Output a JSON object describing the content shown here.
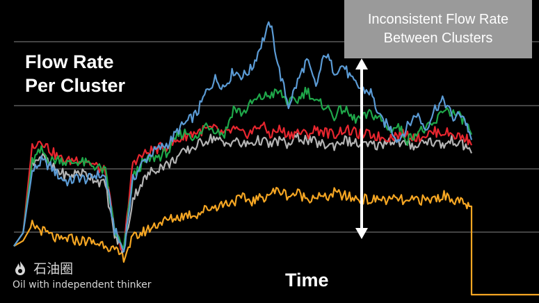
{
  "title_line1": "Flow Rate",
  "title_line2": "Per Cluster",
  "xlabel": "Time",
  "callout_line1": "Inconsistent Flow Rate",
  "callout_line2": "Between Clusters",
  "watermark": {
    "name": "石油圈",
    "slogan": "Oil with independent thinker",
    "icon": "flame-logo-icon"
  },
  "colors": {
    "blue": "#5b9bd5",
    "green": "#1fa84a",
    "red": "#e8262f",
    "gray": "#b4b4b4",
    "orange": "#f5a623",
    "arrow": "#ffffff",
    "grid": "#888888"
  },
  "chart_data": {
    "type": "line",
    "title": "Flow Rate Per Cluster",
    "xlabel": "Time",
    "ylabel": "",
    "xlim": [
      0,
      100
    ],
    "ylim": [
      0,
      100
    ],
    "grid": true,
    "legend": "none",
    "annotation": "Inconsistent Flow Rate Between Clusters",
    "series": [
      {
        "color": "#5b9bd5",
        "points": [
          [
            0,
            12
          ],
          [
            2,
            17
          ],
          [
            4,
            40
          ],
          [
            6,
            44
          ],
          [
            8,
            42
          ],
          [
            10,
            38
          ],
          [
            12,
            36
          ],
          [
            14,
            38
          ],
          [
            16,
            37
          ],
          [
            18,
            39
          ],
          [
            20,
            38
          ],
          [
            22,
            18
          ],
          [
            24,
            10
          ],
          [
            26,
            37
          ],
          [
            28,
            43
          ],
          [
            30,
            47
          ],
          [
            32,
            49
          ],
          [
            34,
            51
          ],
          [
            36,
            56
          ],
          [
            38,
            59
          ],
          [
            40,
            62
          ],
          [
            42,
            70
          ],
          [
            44,
            75
          ],
          [
            46,
            72
          ],
          [
            48,
            78
          ],
          [
            50,
            76
          ],
          [
            52,
            79
          ],
          [
            54,
            88
          ],
          [
            56,
            96
          ],
          [
            58,
            78
          ],
          [
            60,
            65
          ],
          [
            62,
            74
          ],
          [
            64,
            82
          ],
          [
            66,
            72
          ],
          [
            68,
            85
          ],
          [
            70,
            78
          ],
          [
            72,
            80
          ],
          [
            74,
            74
          ],
          [
            76,
            71
          ],
          [
            78,
            70
          ],
          [
            80,
            60
          ],
          [
            82,
            57
          ],
          [
            84,
            52
          ],
          [
            86,
            57
          ],
          [
            88,
            62
          ],
          [
            90,
            56
          ],
          [
            92,
            64
          ],
          [
            94,
            67
          ],
          [
            96,
            60
          ],
          [
            98,
            62
          ],
          [
            99.5,
            55
          ],
          [
            100,
            52
          ]
        ]
      },
      {
        "color": "#1fa84a",
        "points": [
          [
            0,
            12
          ],
          [
            2,
            17
          ],
          [
            4,
            44
          ],
          [
            6,
            48
          ],
          [
            8,
            44
          ],
          [
            10,
            45
          ],
          [
            12,
            43
          ],
          [
            14,
            44
          ],
          [
            16,
            43
          ],
          [
            18,
            42
          ],
          [
            20,
            40
          ],
          [
            22,
            18
          ],
          [
            24,
            10
          ],
          [
            26,
            38
          ],
          [
            28,
            43
          ],
          [
            30,
            45
          ],
          [
            32,
            46
          ],
          [
            34,
            48
          ],
          [
            36,
            54
          ],
          [
            38,
            55
          ],
          [
            40,
            52
          ],
          [
            42,
            58
          ],
          [
            44,
            56
          ],
          [
            46,
            54
          ],
          [
            48,
            64
          ],
          [
            50,
            62
          ],
          [
            52,
            66
          ],
          [
            54,
            68
          ],
          [
            56,
            69
          ],
          [
            58,
            70
          ],
          [
            60,
            66
          ],
          [
            62,
            67
          ],
          [
            64,
            71
          ],
          [
            66,
            66
          ],
          [
            68,
            65
          ],
          [
            70,
            61
          ],
          [
            72,
            64
          ],
          [
            74,
            60
          ],
          [
            76,
            60
          ],
          [
            78,
            62
          ],
          [
            80,
            60
          ],
          [
            82,
            56
          ],
          [
            84,
            57
          ],
          [
            86,
            52
          ],
          [
            88,
            55
          ],
          [
            90,
            56
          ],
          [
            92,
            58
          ],
          [
            94,
            64
          ],
          [
            96,
            62
          ],
          [
            98,
            60
          ],
          [
            99.5,
            56
          ],
          [
            100,
            54
          ]
        ]
      },
      {
        "color": "#e8262f",
        "points": [
          [
            0,
            12
          ],
          [
            2,
            17
          ],
          [
            4,
            50
          ],
          [
            6,
            52
          ],
          [
            8,
            48
          ],
          [
            10,
            45
          ],
          [
            12,
            44
          ],
          [
            14,
            45
          ],
          [
            16,
            44
          ],
          [
            18,
            42
          ],
          [
            20,
            40
          ],
          [
            22,
            18
          ],
          [
            24,
            10
          ],
          [
            26,
            44
          ],
          [
            28,
            46
          ],
          [
            30,
            48
          ],
          [
            32,
            49
          ],
          [
            34,
            50
          ],
          [
            36,
            52
          ],
          [
            38,
            54
          ],
          [
            40,
            55
          ],
          [
            42,
            56
          ],
          [
            44,
            56
          ],
          [
            46,
            54
          ],
          [
            48,
            56
          ],
          [
            50,
            54
          ],
          [
            52,
            55
          ],
          [
            54,
            58
          ],
          [
            56,
            54
          ],
          [
            58,
            56
          ],
          [
            60,
            54
          ],
          [
            62,
            55
          ],
          [
            64,
            54
          ],
          [
            66,
            56
          ],
          [
            68,
            55
          ],
          [
            70,
            54
          ],
          [
            72,
            56
          ],
          [
            74,
            55
          ],
          [
            76,
            54
          ],
          [
            78,
            54
          ],
          [
            80,
            53
          ],
          [
            82,
            53
          ],
          [
            84,
            54
          ],
          [
            86,
            54
          ],
          [
            88,
            53
          ],
          [
            90,
            54
          ],
          [
            92,
            55
          ],
          [
            94,
            55
          ],
          [
            96,
            54
          ],
          [
            98,
            53
          ],
          [
            99.5,
            52
          ],
          [
            100,
            50
          ]
        ]
      },
      {
        "color": "#b4b4b4",
        "points": [
          [
            0,
            12
          ],
          [
            2,
            17
          ],
          [
            4,
            44
          ],
          [
            6,
            46
          ],
          [
            8,
            42
          ],
          [
            10,
            40
          ],
          [
            12,
            38
          ],
          [
            14,
            40
          ],
          [
            16,
            39
          ],
          [
            18,
            37
          ],
          [
            20,
            35
          ],
          [
            22,
            16
          ],
          [
            24,
            10
          ],
          [
            26,
            30
          ],
          [
            28,
            36
          ],
          [
            30,
            40
          ],
          [
            32,
            42
          ],
          [
            34,
            43
          ],
          [
            36,
            46
          ],
          [
            38,
            48
          ],
          [
            40,
            50
          ],
          [
            42,
            52
          ],
          [
            44,
            53
          ],
          [
            46,
            50
          ],
          [
            48,
            52
          ],
          [
            50,
            50
          ],
          [
            52,
            51
          ],
          [
            54,
            52
          ],
          [
            56,
            50
          ],
          [
            58,
            52
          ],
          [
            60,
            50
          ],
          [
            62,
            53
          ],
          [
            64,
            52
          ],
          [
            66,
            51
          ],
          [
            68,
            50
          ],
          [
            70,
            50
          ],
          [
            72,
            52
          ],
          [
            74,
            51
          ],
          [
            76,
            50
          ],
          [
            78,
            50
          ],
          [
            80,
            50
          ],
          [
            82,
            52
          ],
          [
            84,
            51
          ],
          [
            86,
            50
          ],
          [
            88,
            50
          ],
          [
            90,
            52
          ],
          [
            92,
            51
          ],
          [
            94,
            50
          ],
          [
            96,
            52
          ],
          [
            98,
            50
          ],
          [
            99.5,
            49
          ],
          [
            100,
            47
          ]
        ]
      },
      {
        "color": "#f5a623",
        "points": [
          [
            0,
            12
          ],
          [
            2,
            14
          ],
          [
            4,
            20
          ],
          [
            6,
            18
          ],
          [
            8,
            16
          ],
          [
            10,
            14
          ],
          [
            12,
            15
          ],
          [
            14,
            14
          ],
          [
            16,
            14
          ],
          [
            18,
            13
          ],
          [
            20,
            13
          ],
          [
            22,
            10
          ],
          [
            24,
            8
          ],
          [
            26,
            15
          ],
          [
            28,
            17
          ],
          [
            30,
            19
          ],
          [
            32,
            21
          ],
          [
            34,
            22
          ],
          [
            36,
            23
          ],
          [
            38,
            24
          ],
          [
            40,
            24
          ],
          [
            42,
            26
          ],
          [
            44,
            27
          ],
          [
            46,
            28
          ],
          [
            48,
            29
          ],
          [
            50,
            30
          ],
          [
            52,
            29
          ],
          [
            54,
            30
          ],
          [
            56,
            32
          ],
          [
            58,
            33
          ],
          [
            60,
            31
          ],
          [
            62,
            32
          ],
          [
            64,
            30
          ],
          [
            66,
            31
          ],
          [
            68,
            30
          ],
          [
            70,
            32
          ],
          [
            72,
            31
          ],
          [
            74,
            30
          ],
          [
            76,
            30
          ],
          [
            78,
            29
          ],
          [
            80,
            30
          ],
          [
            82,
            29
          ],
          [
            84,
            30
          ],
          [
            86,
            28
          ],
          [
            88,
            30
          ],
          [
            90,
            29
          ],
          [
            92,
            30
          ],
          [
            94,
            31
          ],
          [
            96,
            30
          ],
          [
            98,
            28
          ],
          [
            99.5,
            27
          ],
          [
            100,
            27
          ]
        ]
      }
    ]
  }
}
